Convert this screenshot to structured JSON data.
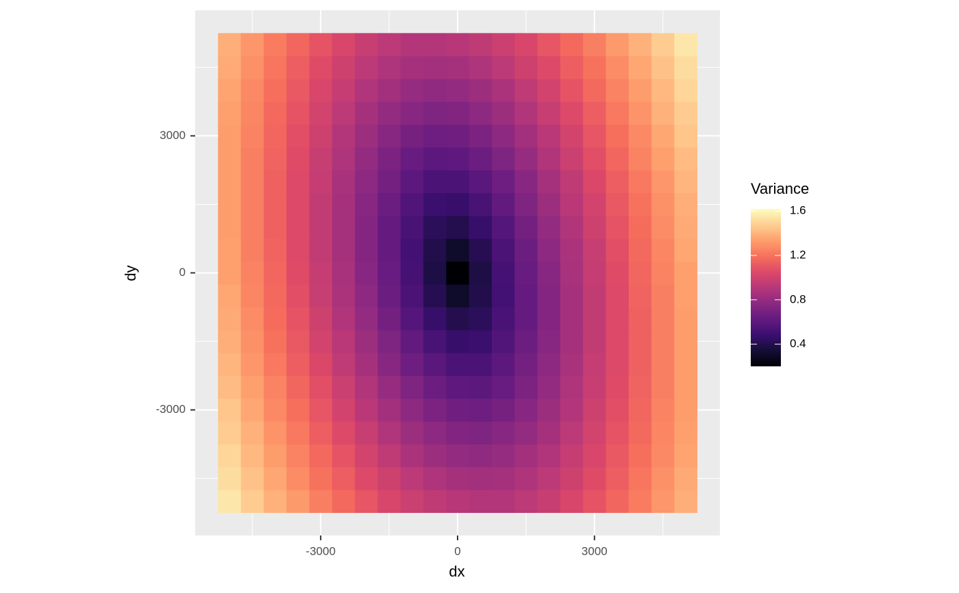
{
  "chart_data": {
    "type": "heatmap",
    "x_label": "dx",
    "y_label": "dy",
    "x": [
      -5000,
      -4500,
      -4000,
      -3500,
      -3000,
      -2500,
      -2000,
      -1500,
      -1000,
      -500,
      0,
      500,
      1000,
      1500,
      2000,
      2500,
      3000,
      3500,
      4000,
      4500,
      5000
    ],
    "y": [
      -5000,
      -4500,
      -4000,
      -3500,
      -3000,
      -2500,
      -2000,
      -1500,
      -1000,
      -500,
      0,
      500,
      1000,
      1500,
      2000,
      2500,
      3000,
      3500,
      4000,
      4500,
      5000
    ],
    "values": [
      [
        1.55,
        1.47,
        1.39,
        1.32,
        1.24,
        1.17,
        1.1,
        1.03,
        0.98,
        0.94,
        0.91,
        0.9,
        0.9,
        0.93,
        0.97,
        1.03,
        1.09,
        1.16,
        1.23,
        1.31,
        1.38
      ],
      [
        1.52,
        1.44,
        1.36,
        1.28,
        1.2,
        1.13,
        1.05,
        0.99,
        0.93,
        0.88,
        0.85,
        0.84,
        0.85,
        0.88,
        0.93,
        0.99,
        1.06,
        1.13,
        1.21,
        1.29,
        1.37
      ],
      [
        1.5,
        1.41,
        1.33,
        1.25,
        1.17,
        1.09,
        1.01,
        0.94,
        0.87,
        0.82,
        0.79,
        0.78,
        0.8,
        0.84,
        0.89,
        0.96,
        1.03,
        1.11,
        1.19,
        1.27,
        1.35
      ],
      [
        1.47,
        1.39,
        1.3,
        1.22,
        1.13,
        1.05,
        0.97,
        0.89,
        0.82,
        0.77,
        0.73,
        0.72,
        0.75,
        0.79,
        0.85,
        0.93,
        1.01,
        1.09,
        1.17,
        1.26,
        1.34
      ],
      [
        1.45,
        1.36,
        1.27,
        1.19,
        1.1,
        1.01,
        0.92,
        0.84,
        0.77,
        0.71,
        0.67,
        0.66,
        0.69,
        0.75,
        0.82,
        0.9,
        0.99,
        1.07,
        1.16,
        1.25,
        1.33
      ],
      [
        1.42,
        1.34,
        1.25,
        1.16,
        1.07,
        0.98,
        0.89,
        0.8,
        0.72,
        0.65,
        0.61,
        0.6,
        0.64,
        0.71,
        0.79,
        0.88,
        0.97,
        1.06,
        1.15,
        1.24,
        1.33
      ],
      [
        1.4,
        1.31,
        1.22,
        1.13,
        1.04,
        0.94,
        0.85,
        0.75,
        0.66,
        0.59,
        0.54,
        0.54,
        0.6,
        0.68,
        0.77,
        0.86,
        0.96,
        1.05,
        1.14,
        1.24,
        1.33
      ],
      [
        1.38,
        1.29,
        1.2,
        1.11,
        1.01,
        0.92,
        0.82,
        0.72,
        0.62,
        0.53,
        0.47,
        0.48,
        0.56,
        0.65,
        0.75,
        0.85,
        0.95,
        1.05,
        1.14,
        1.24,
        1.33
      ],
      [
        1.37,
        1.28,
        1.18,
        1.09,
        0.99,
        0.89,
        0.79,
        0.68,
        0.57,
        0.47,
        0.4,
        0.43,
        0.53,
        0.63,
        0.74,
        0.85,
        0.95,
        1.05,
        1.14,
        1.24,
        1.33
      ],
      [
        1.36,
        1.26,
        1.17,
        1.07,
        0.97,
        0.87,
        0.77,
        0.65,
        0.54,
        0.41,
        0.31,
        0.39,
        0.51,
        0.63,
        0.74,
        0.85,
        0.95,
        1.05,
        1.15,
        1.24,
        1.34
      ],
      [
        1.34,
        1.25,
        1.16,
        1.06,
        0.96,
        0.86,
        0.75,
        0.64,
        0.52,
        0.38,
        0.2,
        0.38,
        0.52,
        0.64,
        0.75,
        0.86,
        0.96,
        1.06,
        1.16,
        1.25,
        1.34
      ],
      [
        1.34,
        1.24,
        1.15,
        1.05,
        0.95,
        0.85,
        0.74,
        0.63,
        0.51,
        0.39,
        0.31,
        0.41,
        0.54,
        0.65,
        0.77,
        0.87,
        0.97,
        1.07,
        1.17,
        1.26,
        1.36
      ],
      [
        1.33,
        1.24,
        1.14,
        1.05,
        0.95,
        0.85,
        0.74,
        0.63,
        0.53,
        0.43,
        0.4,
        0.47,
        0.57,
        0.68,
        0.79,
        0.89,
        0.99,
        1.09,
        1.18,
        1.28,
        1.37
      ],
      [
        1.33,
        1.24,
        1.14,
        1.05,
        0.95,
        0.85,
        0.75,
        0.65,
        0.56,
        0.48,
        0.47,
        0.53,
        0.62,
        0.72,
        0.82,
        0.92,
        1.01,
        1.11,
        1.2,
        1.29,
        1.38
      ],
      [
        1.33,
        1.24,
        1.14,
        1.05,
        0.96,
        0.86,
        0.77,
        0.68,
        0.6,
        0.54,
        0.54,
        0.59,
        0.66,
        0.75,
        0.85,
        0.94,
        1.04,
        1.13,
        1.22,
        1.31,
        1.4
      ],
      [
        1.33,
        1.24,
        1.15,
        1.06,
        0.97,
        0.88,
        0.79,
        0.71,
        0.64,
        0.6,
        0.61,
        0.65,
        0.72,
        0.8,
        0.89,
        0.98,
        1.07,
        1.16,
        1.25,
        1.34,
        1.42
      ],
      [
        1.33,
        1.25,
        1.16,
        1.07,
        0.99,
        0.9,
        0.82,
        0.75,
        0.69,
        0.66,
        0.67,
        0.71,
        0.77,
        0.84,
        0.92,
        1.01,
        1.1,
        1.19,
        1.27,
        1.36,
        1.45
      ],
      [
        1.34,
        1.26,
        1.17,
        1.09,
        1.01,
        0.93,
        0.85,
        0.79,
        0.75,
        0.72,
        0.73,
        0.77,
        0.82,
        0.89,
        0.97,
        1.05,
        1.13,
        1.22,
        1.3,
        1.39,
        1.47
      ],
      [
        1.35,
        1.27,
        1.19,
        1.11,
        1.03,
        0.96,
        0.89,
        0.84,
        0.8,
        0.78,
        0.79,
        0.82,
        0.87,
        0.94,
        1.01,
        1.09,
        1.17,
        1.25,
        1.33,
        1.41,
        1.5
      ],
      [
        1.37,
        1.29,
        1.21,
        1.13,
        1.06,
        0.99,
        0.93,
        0.88,
        0.85,
        0.84,
        0.85,
        0.88,
        0.93,
        0.99,
        1.05,
        1.13,
        1.2,
        1.28,
        1.36,
        1.44,
        1.52
      ],
      [
        1.38,
        1.31,
        1.23,
        1.16,
        1.09,
        1.03,
        0.97,
        0.93,
        0.9,
        0.9,
        0.91,
        0.94,
        0.98,
        1.03,
        1.1,
        1.17,
        1.24,
        1.32,
        1.39,
        1.47,
        1.55
      ]
    ],
    "xlim": [
      -5750,
      5750
    ],
    "ylim": [
      -5750,
      5750
    ],
    "xticks": [
      -3000,
      0,
      3000
    ],
    "yticks": [
      -3000,
      0,
      3000
    ],
    "grid": true,
    "colormap": "magma",
    "colorbar": {
      "title": "Variance",
      "lim": [
        0.2,
        1.62
      ],
      "ticks": [
        0.4,
        0.8,
        1.2,
        1.6
      ]
    }
  }
}
